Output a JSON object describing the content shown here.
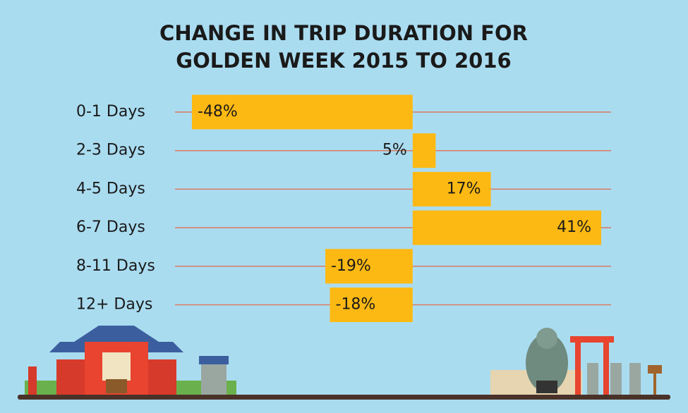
{
  "chart_data": {
    "type": "hbar",
    "title": [
      "CHANGE IN TRIP DURATION FOR",
      "GOLDEN WEEK 2015 TO 2016"
    ],
    "categories": [
      "0-1 Days",
      "2-3 Days",
      "4-5 Days",
      "6-7 Days",
      "8-11 Days",
      "12+ Days"
    ],
    "values": [
      -48,
      5,
      17,
      41,
      -19,
      -18
    ],
    "value_labels": [
      "-48%",
      "5%",
      "17%",
      "41%",
      "-19%",
      "-18%"
    ],
    "color": "#fdb913",
    "grid": true
  }
}
